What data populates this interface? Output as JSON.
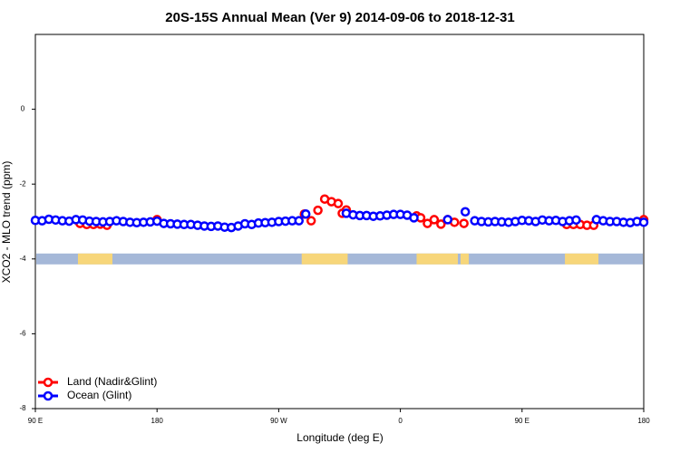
{
  "chart_data": {
    "type": "scatter",
    "title": "20S-15S Annual Mean (Ver 9)   2014-09-06 to 2018-12-31",
    "x_label": "Longitude (deg E)",
    "y_label": "XCO2 - MLO trend (ppm)",
    "xlim": [
      90,
      540
    ],
    "xticks": [
      {
        "value": 90,
        "label": "90 E"
      },
      {
        "value": 180,
        "label": "180"
      },
      {
        "value": 270,
        "label": "90 W"
      },
      {
        "value": 360,
        "label": "0"
      },
      {
        "value": 450,
        "label": "90 E"
      },
      {
        "value": 540,
        "label": "180"
      }
    ],
    "ylim": [
      -8,
      2
    ],
    "yticks": [
      0,
      -2,
      -4,
      -6,
      -8
    ],
    "legend": "lower left",
    "series": [
      {
        "name": "Land (Nadir&Glint)",
        "color": "#ff0000",
        "x": [
          123,
          128,
          133,
          138,
          143,
          180,
          289,
          294,
          299,
          304,
          309,
          314,
          317,
          320,
          372,
          375,
          380,
          385,
          390,
          395,
          400,
          407,
          483,
          488,
          493,
          498,
          503,
          540
        ],
        "values": [
          -3.05,
          -3.08,
          -3.08,
          -3.07,
          -3.1,
          -2.95,
          -2.8,
          -2.98,
          -2.7,
          -2.4,
          -2.47,
          -2.52,
          -2.78,
          -2.69,
          -2.85,
          -2.9,
          -3.05,
          -2.95,
          -3.07,
          -2.95,
          -3.02,
          -3.05,
          -3.08,
          -3.08,
          -3.08,
          -3.1,
          -3.1,
          -2.95
        ]
      },
      {
        "name": "Ocean (Glint)",
        "color": "#0000ff",
        "x": [
          90,
          95,
          100,
          105,
          110,
          115,
          120,
          125,
          130,
          135,
          140,
          145,
          150,
          155,
          160,
          165,
          170,
          175,
          180,
          185,
          190,
          195,
          200,
          205,
          210,
          215,
          220,
          225,
          230,
          235,
          240,
          245,
          250,
          255,
          260,
          265,
          270,
          275,
          280,
          285,
          290,
          320,
          325,
          330,
          335,
          340,
          345,
          350,
          355,
          360,
          365,
          370,
          395,
          408,
          415,
          420,
          425,
          430,
          435,
          440,
          445,
          450,
          455,
          460,
          465,
          470,
          475,
          480,
          485,
          490,
          505,
          510,
          515,
          520,
          525,
          530,
          535,
          540
        ],
        "values": [
          -2.97,
          -2.98,
          -2.94,
          -2.96,
          -2.98,
          -2.99,
          -2.95,
          -2.96,
          -2.99,
          -3.0,
          -3.01,
          -3.0,
          -2.98,
          -3.0,
          -3.02,
          -3.03,
          -3.02,
          -3.01,
          -2.99,
          -3.05,
          -3.06,
          -3.07,
          -3.08,
          -3.08,
          -3.1,
          -3.12,
          -3.13,
          -3.12,
          -3.15,
          -3.16,
          -3.12,
          -3.06,
          -3.08,
          -3.04,
          -3.03,
          -3.02,
          -3.0,
          -2.99,
          -2.98,
          -2.98,
          -2.8,
          -2.78,
          -2.82,
          -2.84,
          -2.84,
          -2.86,
          -2.85,
          -2.83,
          -2.81,
          -2.81,
          -2.83,
          -2.9,
          -2.95,
          -2.74,
          -2.98,
          -3.0,
          -3.01,
          -3.0,
          -3.01,
          -3.02,
          -3.0,
          -2.97,
          -2.98,
          -3.0,
          -2.96,
          -2.98,
          -2.97,
          -3.0,
          -2.98,
          -2.96,
          -2.95,
          -2.98,
          -3.0,
          -3.0,
          -3.02,
          -3.03,
          -3.0,
          -3.02
        ]
      }
    ],
    "mask_y": -4,
    "mask_color": "#a5b8d8",
    "land_color": "#f7d67a",
    "land_ranges": [
      [
        121.5,
        147
      ],
      [
        287,
        321
      ],
      [
        372,
        402.5
      ],
      [
        404.5,
        410.6
      ],
      [
        481.7,
        506.5
      ]
    ]
  }
}
